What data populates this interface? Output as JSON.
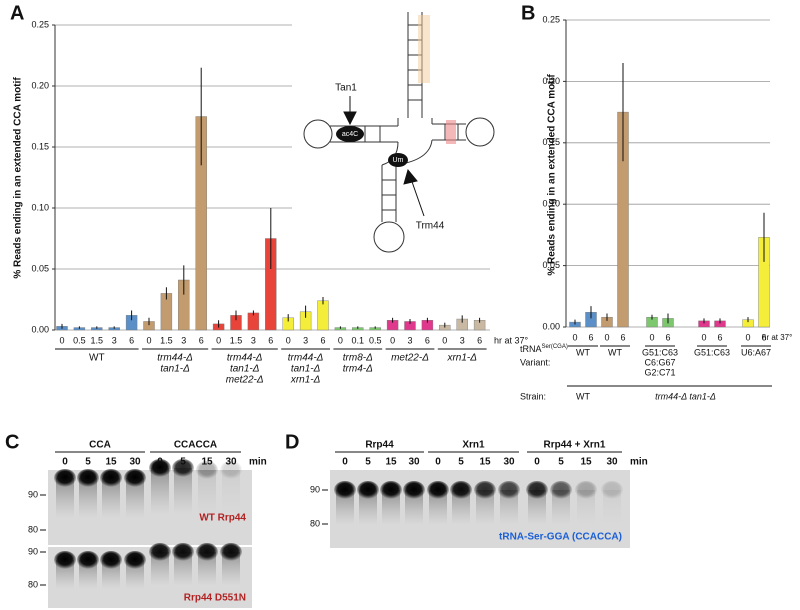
{
  "chart_data": [
    {
      "type": "bar",
      "label": "A",
      "y_label": "% Reads ending in an extended CCA motif",
      "x_label": "hr at 37°",
      "ylim": [
        0,
        0.25
      ],
      "yticks": [
        {
          "value": 0,
          "label": "0.00"
        },
        0.05,
        {
          "value": 0.1,
          "label": "0.10"
        },
        0.15,
        {
          "value": 0.2,
          "label": "0.20"
        },
        0.25
      ],
      "grid": true,
      "series": [
        {
          "group": [
            "WT"
          ],
          "color": "#5b8fc7",
          "categories": [
            "0",
            "0.5",
            "1.5",
            "3",
            "6"
          ],
          "values": [
            0.003,
            0.002,
            0.002,
            0.002,
            0.012
          ],
          "errors": [
            0.002,
            0.001,
            0.001,
            0.001,
            0.004
          ]
        },
        {
          "group": [
            "trm44-Δ",
            "tan1-Δ"
          ],
          "color": "#c29b6e",
          "categories": [
            "0",
            "1.5",
            "3",
            "6"
          ],
          "values": [
            0.007,
            0.03,
            0.041,
            0.175
          ],
          "errors": [
            0.003,
            0.005,
            0.012,
            0.04
          ]
        },
        {
          "group": [
            "trm44-Δ",
            "tan1-Δ",
            "met22-Δ"
          ],
          "color": "#e8443a",
          "categories": [
            "0",
            "1.5",
            "3",
            "6"
          ],
          "values": [
            0.005,
            0.012,
            0.014,
            0.075
          ],
          "errors": [
            0.003,
            0.004,
            0.002,
            0.025
          ]
        },
        {
          "group": [
            "trm44-Δ",
            "tan1-Δ",
            "xrn1-Δ"
          ],
          "color": "#f4ee3a",
          "categories": [
            "0",
            "3",
            "6"
          ],
          "values": [
            0.01,
            0.015,
            0.024
          ],
          "errors": [
            0.003,
            0.005,
            0.003
          ]
        },
        {
          "group": [
            "trm8-Δ",
            "trm4-Δ"
          ],
          "color": "#7dc86f",
          "categories": [
            "0",
            "0.1",
            "0.5"
          ],
          "values": [
            0.002,
            0.002,
            0.002
          ],
          "errors": [
            0.001,
            0.001,
            0.001
          ]
        },
        {
          "group": [
            "met22-Δ"
          ],
          "color": "#e0388c",
          "categories": [
            "0",
            "3",
            "6"
          ],
          "values": [
            0.008,
            0.007,
            0.008
          ],
          "errors": [
            0.002,
            0.002,
            0.002
          ]
        },
        {
          "group": [
            "xrn1-Δ"
          ],
          "color": "#c9b9a3",
          "categories": [
            "0",
            "3",
            "6"
          ],
          "values": [
            0.004,
            0.009,
            0.008
          ],
          "errors": [
            0.002,
            0.003,
            0.002
          ]
        }
      ],
      "diagram": {
        "enzymes": [
          "Tan1",
          "Trm44"
        ],
        "modifications": [
          "ac4C",
          "Um"
        ]
      }
    },
    {
      "type": "bar",
      "label": "B",
      "y_label": "% Reads ending in an extended CCA motif",
      "x_label": "hr at 37°",
      "ylim": [
        0,
        0.25
      ],
      "yticks": [
        {
          "value": 0,
          "label": "0.00"
        },
        0.05,
        {
          "value": 0.1,
          "label": "0.10"
        },
        0.15,
        {
          "value": 0.2,
          "label": "0.20"
        },
        0.25
      ],
      "grid": true,
      "trna_label": {
        "text": "tRNA",
        "sup": "Ser(CGA)"
      },
      "variant_label": "Variant:",
      "strain_label": "Strain:",
      "strains": [
        {
          "name": "WT",
          "variants": [
            {
              "variant": [
                "WT"
              ],
              "color": "#5b8fc7",
              "categories": [
                "0",
                "6"
              ],
              "values": [
                0.004,
                0.012
              ],
              "errors": [
                0.002,
                0.005
              ]
            }
          ]
        },
        {
          "name": "trm44-Δ tan1-Δ",
          "variants": [
            {
              "variant": [
                "WT"
              ],
              "color": "#c29b6e",
              "categories": [
                "0",
                "6"
              ],
              "values": [
                0.008,
                0.175
              ],
              "errors": [
                0.003,
                0.04
              ]
            },
            {
              "variant": [
                "G51:C63",
                "C6:G67",
                "G2:C71"
              ],
              "color": "#7dc86f",
              "categories": [
                "0",
                "6"
              ],
              "values": [
                0.008,
                0.007
              ],
              "errors": [
                0.002,
                0.004
              ]
            },
            {
              "variant": [
                "G51:C63"
              ],
              "color": "#e0388c",
              "categories": [
                "0",
                "6"
              ],
              "values": [
                0.005,
                0.005
              ],
              "errors": [
                0.002,
                0.002
              ]
            },
            {
              "variant": [
                "U6:A67"
              ],
              "color": "#f4ee3a",
              "categories": [
                "0",
                "6"
              ],
              "values": [
                0.006,
                0.073
              ],
              "errors": [
                0.002,
                0.02
              ]
            }
          ]
        }
      ]
    }
  ],
  "gels": {
    "C": {
      "label": "C",
      "groups": [
        {
          "name": "CCA",
          "times": [
            "0",
            "5",
            "15",
            "30"
          ]
        },
        {
          "name": "CCACCA",
          "times": [
            "0",
            "5",
            "15",
            "30"
          ]
        }
      ],
      "time_unit": "min",
      "markers": [
        "90",
        "80"
      ],
      "blots": [
        "WT Rrp44",
        "Rrp44 D551N"
      ]
    },
    "D": {
      "label": "D",
      "groups": [
        {
          "name": "Rrp44",
          "times": [
            "0",
            "5",
            "15",
            "30"
          ]
        },
        {
          "name": "Xrn1",
          "times": [
            "0",
            "5",
            "15",
            "30"
          ]
        },
        {
          "name": "Rrp44 + Xrn1",
          "times": [
            "0",
            "5",
            "15",
            "30"
          ]
        }
      ],
      "time_unit": "min",
      "markers": [
        "90",
        "80"
      ],
      "substrate": "tRNA-Ser-GGA (CCACCA)"
    }
  }
}
